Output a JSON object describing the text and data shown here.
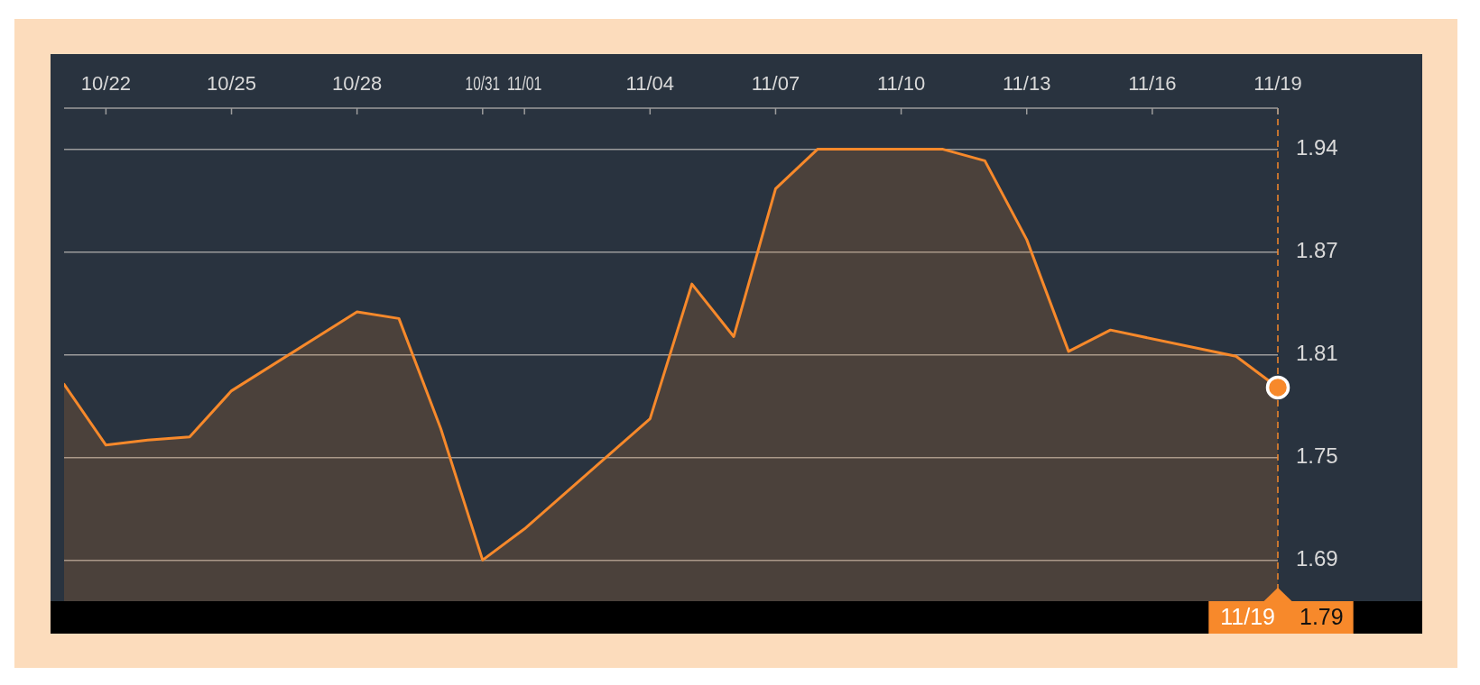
{
  "chart_data": {
    "type": "area",
    "x": [
      "--10-21",
      "--10-22",
      "--10-23",
      "--10-24",
      "--10-25",
      "--10-28",
      "--10-29",
      "--10-30",
      "--10-31",
      "--11-01",
      "--11-04",
      "--11-05",
      "--11-06",
      "--11-07",
      "--11-08",
      "--11-11",
      "--11-12",
      "--11-13",
      "--11-14",
      "--11-15",
      "--11-18",
      "--11-19"
    ],
    "series": [
      {
        "color": "#f7892b",
        "values": [
          1.793,
          1.756,
          1.759,
          1.761,
          1.789,
          1.837,
          1.833,
          1.766,
          1.686,
          1.705,
          1.772,
          1.854,
          1.822,
          1.912,
          1.936,
          1.936,
          1.929,
          1.881,
          1.813,
          1.826,
          1.81,
          1.791
        ]
      },
      {
        "type": "scatter",
        "color": "#f7892b",
        "x": [
          "--11-19"
        ],
        "values": [
          1.791
        ],
        "marker": "circle"
      }
    ],
    "xlim": [
      "--10-21",
      "--11-19"
    ],
    "xticks": [
      {
        "value": "--10-22",
        "label": "10/22"
      },
      {
        "value": "--10-25",
        "label": "10/25"
      },
      {
        "value": "--10-28",
        "label": "10/28"
      },
      {
        "value": "--10-31",
        "label": "10/31"
      },
      {
        "value": "--11-01",
        "label": "11/01"
      },
      {
        "value": "--11-04",
        "label": "11/04"
      },
      {
        "value": "--11-07",
        "label": "11/07"
      },
      {
        "value": "--11-10",
        "label": "11/10"
      },
      {
        "value": "--11-13",
        "label": "11/13"
      },
      {
        "value": "--11-16",
        "label": "11/16"
      },
      {
        "value": "--11-19",
        "label": "11/19"
      }
    ],
    "ylim": [
      1.661,
      1.961
    ],
    "yticks": [
      {
        "value": 1.686,
        "label": "1.69"
      },
      {
        "value": 1.7485,
        "label": "1.75"
      },
      {
        "value": 1.811,
        "label": "1.81"
      },
      {
        "value": 1.8735,
        "label": "1.87"
      },
      {
        "value": 1.936,
        "label": "1.94"
      }
    ],
    "grid": "y",
    "ref_lines": [
      {
        "axis": "x",
        "value": "--11-19",
        "color": "#f7892b",
        "line_style": "dashed"
      }
    ],
    "annotations": [
      "11/19",
      "1.79"
    ]
  }
}
